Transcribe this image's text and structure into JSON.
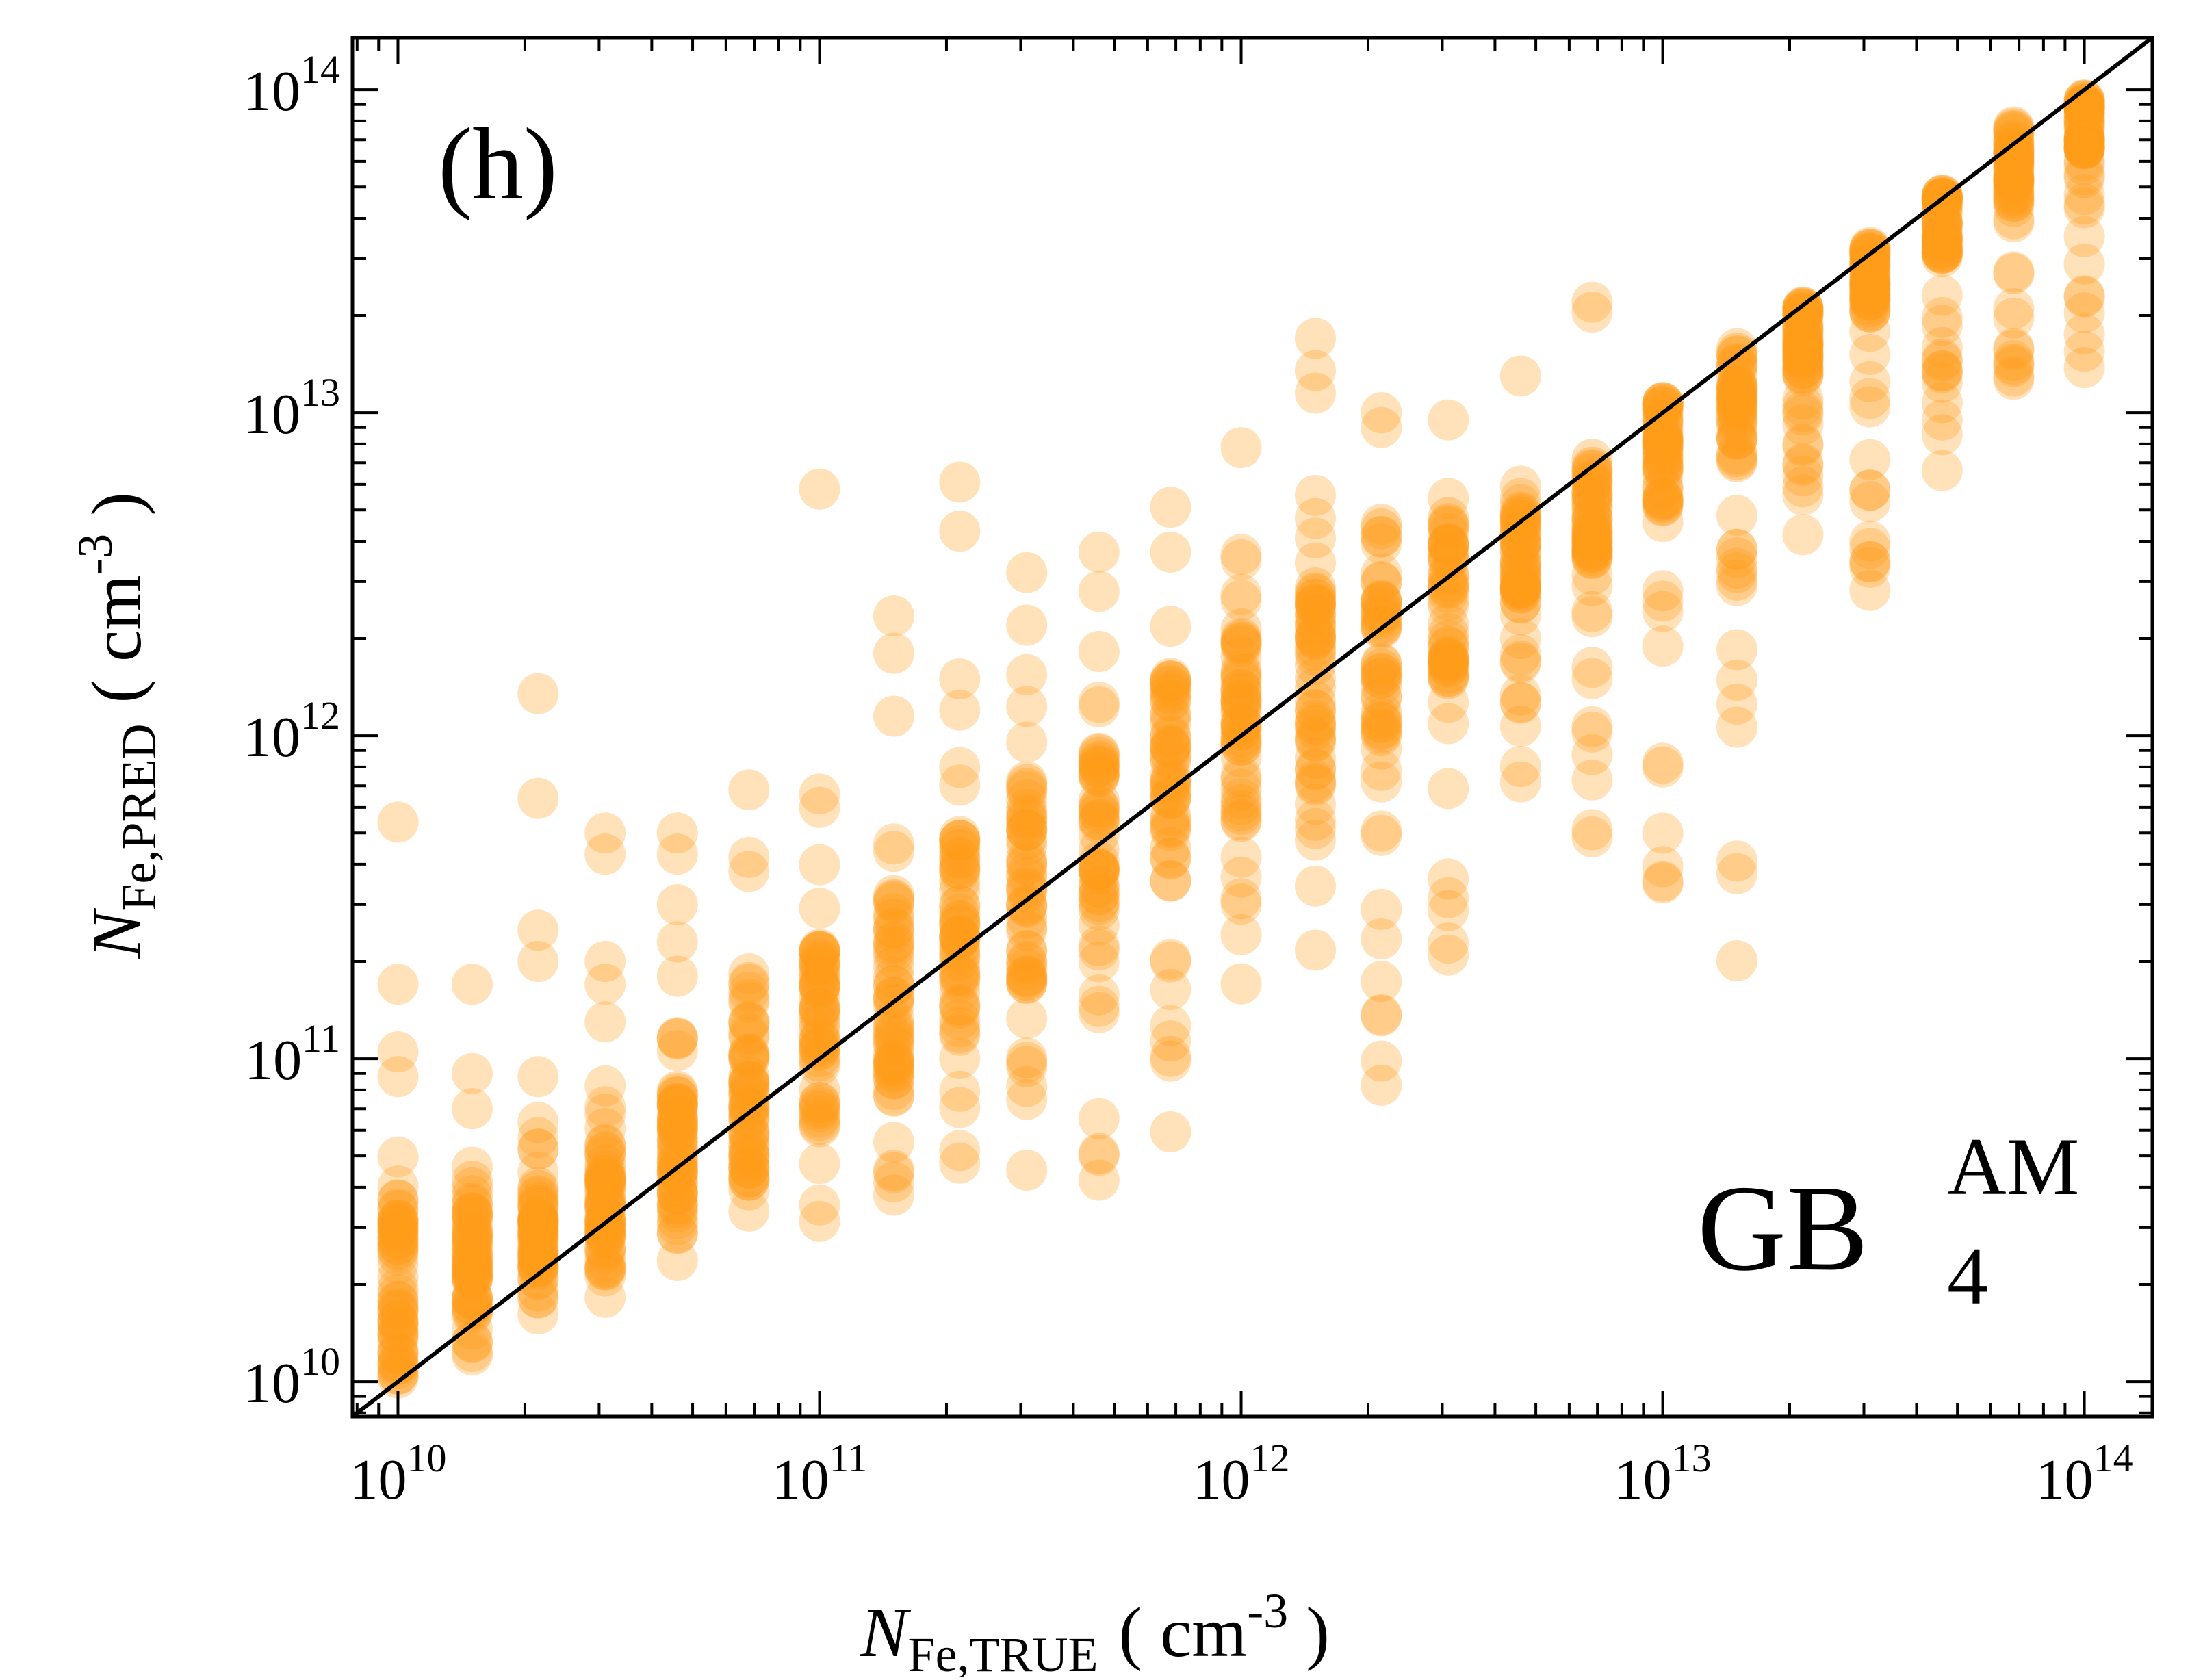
{
  "chart_data": {
    "type": "scatter",
    "panel_label": "(h)",
    "model_label": {
      "base": "GB",
      "superscript": "AM",
      "subscript": "4"
    },
    "x_axis": {
      "label_main": "N",
      "label_sub": "Fe,TRUE",
      "label_unit_open": "( cm",
      "label_unit_exp": "-3",
      "label_unit_close": " )",
      "scale": "log",
      "range": [
        7800000000.0,
        145000000000000.0
      ],
      "ticks": [
        {
          "base": "10",
          "exp": "10",
          "value": 10000000000.0
        },
        {
          "base": "10",
          "exp": "11",
          "value": 100000000000.0
        },
        {
          "base": "10",
          "exp": "12",
          "value": 1000000000000.0
        },
        {
          "base": "10",
          "exp": "13",
          "value": 10000000000000.0
        },
        {
          "base": "10",
          "exp": "14",
          "value": 100000000000000.0
        }
      ]
    },
    "y_axis": {
      "label_main": "N",
      "label_sub": "Fe,PRED",
      "label_unit_open": "( cm",
      "label_unit_exp": "-3",
      "label_unit_close": " )",
      "scale": "log",
      "range": [
        7800000000.0,
        145000000000000.0
      ],
      "ticks": [
        {
          "base": "10",
          "exp": "10",
          "value": 10000000000.0
        },
        {
          "base": "10",
          "exp": "11",
          "value": 100000000000.0
        },
        {
          "base": "10",
          "exp": "12",
          "value": 1000000000000.0
        },
        {
          "base": "10",
          "exp": "13",
          "value": 10000000000000.0
        },
        {
          "base": "10",
          "exp": "14",
          "value": 100000000000000.0
        }
      ]
    },
    "reference_line": {
      "type": "y=x",
      "color": "#000000"
    },
    "marker_color": "#ff9a1a",
    "grid": false,
    "legend": "none",
    "columns": [
      {
        "x": 10000000000.0,
        "y_min": 8000000000.0,
        "y_max": 50000000000.0,
        "core_min": 9000000000.0,
        "core_max": 38000000000.0,
        "outliers": [
          540000000000.0,
          170000000000.0,
          105000000000.0,
          88000000000.0
        ]
      },
      {
        "x": 15000000000.0,
        "y_min": 12000000000.0,
        "y_max": 50000000000.0,
        "core_min": 13000000000.0,
        "core_max": 42000000000.0,
        "outliers": [
          170000000000.0,
          90000000000.0,
          70000000000.0
        ]
      },
      {
        "x": 21500000000.0,
        "y_min": 16000000000.0,
        "y_max": 70000000000.0,
        "core_min": 19000000000.0,
        "core_max": 40000000000.0,
        "outliers": [
          1350000000000.0,
          640000000000.0,
          250000000000.0,
          200000000000.0,
          88000000000.0
        ]
      },
      {
        "x": 31000000000.0,
        "y_min": 18000000000.0,
        "y_max": 100000000000.0,
        "core_min": 23000000000.0,
        "core_max": 55000000000.0,
        "outliers": [
          500000000000.0,
          430000000000.0,
          200000000000.0,
          170000000000.0,
          130000000000.0
        ]
      },
      {
        "x": 46000000000.0,
        "y_min": 22000000000.0,
        "y_max": 130000000000.0,
        "core_min": 28000000000.0,
        "core_max": 80000000000.0,
        "outliers": [
          500000000000.0,
          430000000000.0,
          300000000000.0,
          230000000000.0,
          180000000000.0
        ]
      },
      {
        "x": 68000000000.0,
        "y_min": 28000000000.0,
        "y_max": 250000000000.0,
        "core_min": 40000000000.0,
        "core_max": 130000000000.0,
        "outliers": [
          680000000000.0,
          420000000000.0,
          380000000000.0
        ]
      },
      {
        "x": 100000000000.0,
        "y_min": 31000000000.0,
        "y_max": 430000000000.0,
        "core_min": 60000000000.0,
        "core_max": 220000000000.0,
        "outliers": [
          5800000000000.0,
          660000000000.0,
          600000000000.0
        ]
      },
      {
        "x": 150000000000.0,
        "y_min": 35000000000.0,
        "y_max": 700000000000.0,
        "core_min": 85000000000.0,
        "core_max": 350000000000.0,
        "outliers": [
          2350000000000.0,
          1800000000000.0,
          1150000000000.0
        ]
      },
      {
        "x": 215000000000.0,
        "y_min": 39000000000.0,
        "y_max": 900000000000.0,
        "core_min": 120000000000.0,
        "core_max": 500000000000.0,
        "outliers": [
          6100000000000.0,
          4300000000000.0,
          1500000000000.0,
          1200000000000.0
        ]
      },
      {
        "x": 310000000000.0,
        "y_min": 44000000000.0,
        "y_max": 1800000000000.0,
        "core_min": 170000000000.0,
        "core_max": 750000000000.0,
        "outliers": [
          3200000000000.0,
          2200000000000.0
        ]
      },
      {
        "x": 460000000000.0,
        "y_min": 38000000000.0,
        "y_max": 2000000000000.0,
        "core_min": 250000000000.0,
        "core_max": 1000000000000.0,
        "outliers": [
          3700000000000.0,
          2800000000000.0
        ]
      },
      {
        "x": 680000000000.0,
        "y_min": 55000000000.0,
        "y_max": 2200000000000.0,
        "core_min": 350000000000.0,
        "core_max": 1500000000000.0,
        "outliers": [
          5100000000000.0,
          3700000000000.0
        ]
      },
      {
        "x": 1000000000000.0,
        "y_min": 75000000000.0,
        "y_max": 4200000000000.0,
        "core_min": 500000000000.0,
        "core_max": 2200000000000.0,
        "outliers": [
          7800000000000.0
        ]
      },
      {
        "x": 1500000000000.0,
        "y_min": 140000000000.0,
        "y_max": 6300000000000.0,
        "core_min": 700000000000.0,
        "core_max": 3000000000000.0,
        "outliers": [
          17000000000000.0,
          13500000000000.0,
          11500000000000.0
        ]
      },
      {
        "x": 2150000000000.0,
        "y_min": 82000000000.0,
        "y_max": 8000000000000.0,
        "core_min": 1000000000000.0,
        "core_max": 5000000000000.0,
        "outliers": [
          10000000000000.0,
          9000000000000.0
        ]
      },
      {
        "x": 3100000000000.0,
        "y_min": 190000000000.0,
        "y_max": 8000000000000.0,
        "core_min": 1500000000000.0,
        "core_max": 5500000000000.0,
        "outliers": [
          9500000000000.0
        ]
      },
      {
        "x": 4600000000000.0,
        "y_min": 680000000000.0,
        "y_max": 6600000000000.0,
        "core_min": 2500000000000.0,
        "core_max": 5000000000000.0,
        "outliers": [
          13000000000000.0
        ]
      },
      {
        "x": 6800000000000.0,
        "y_min": 460000000000.0,
        "y_max": 7600000000000.0,
        "core_min": 3500000000000.0,
        "core_max": 7200000000000.0,
        "outliers": [
          22000000000000.0,
          20500000000000.0
        ]
      },
      {
        "x": 10000000000000.0,
        "y_min": 290000000000.0,
        "y_max": 12000000000000.0,
        "core_min": 5000000000000.0,
        "core_max": 11000000000000.0,
        "outliers": [
          350000000000.0
        ]
      },
      {
        "x": 15000000000000.0,
        "y_min": 150000000000.0,
        "y_max": 18000000000000.0,
        "core_min": 7000000000000.0,
        "core_max": 16000000000000.0,
        "outliers": [
          3200000000000.0
        ]
      },
      {
        "x": 21500000000000.0,
        "y_min": 3400000000000.0,
        "y_max": 23000000000000.0,
        "core_min": 13000000000000.0,
        "core_max": 22000000000000.0,
        "outliers": [
          8000000000000.0
        ]
      },
      {
        "x": 31000000000000.0,
        "y_min": 2800000000000.0,
        "y_max": 35000000000000.0,
        "core_min": 20000000000000.0,
        "core_max": 33000000000000.0,
        "outliers": [
          5300000000000.0,
          3800000000000.0
        ]
      },
      {
        "x": 46000000000000.0,
        "y_min": 5500000000000.0,
        "y_max": 50000000000000.0,
        "core_min": 30000000000000.0,
        "core_max": 48000000000000.0,
        "outliers": [
          9500000000000.0
        ]
      },
      {
        "x": 68000000000000.0,
        "y_min": 12500000000000.0,
        "y_max": 80000000000000.0,
        "core_min": 45000000000000.0,
        "core_max": 78000000000000.0,
        "outliers": [
          21000000000000.0
        ]
      },
      {
        "x": 100000000000000.0,
        "y_min": 12000000000000.0,
        "y_max": 98000000000000.0,
        "core_min": 65000000000000.0,
        "core_max": 96000000000000.0,
        "outliers": [
          23000000000000.0,
          15500000000000.0
        ]
      }
    ]
  }
}
